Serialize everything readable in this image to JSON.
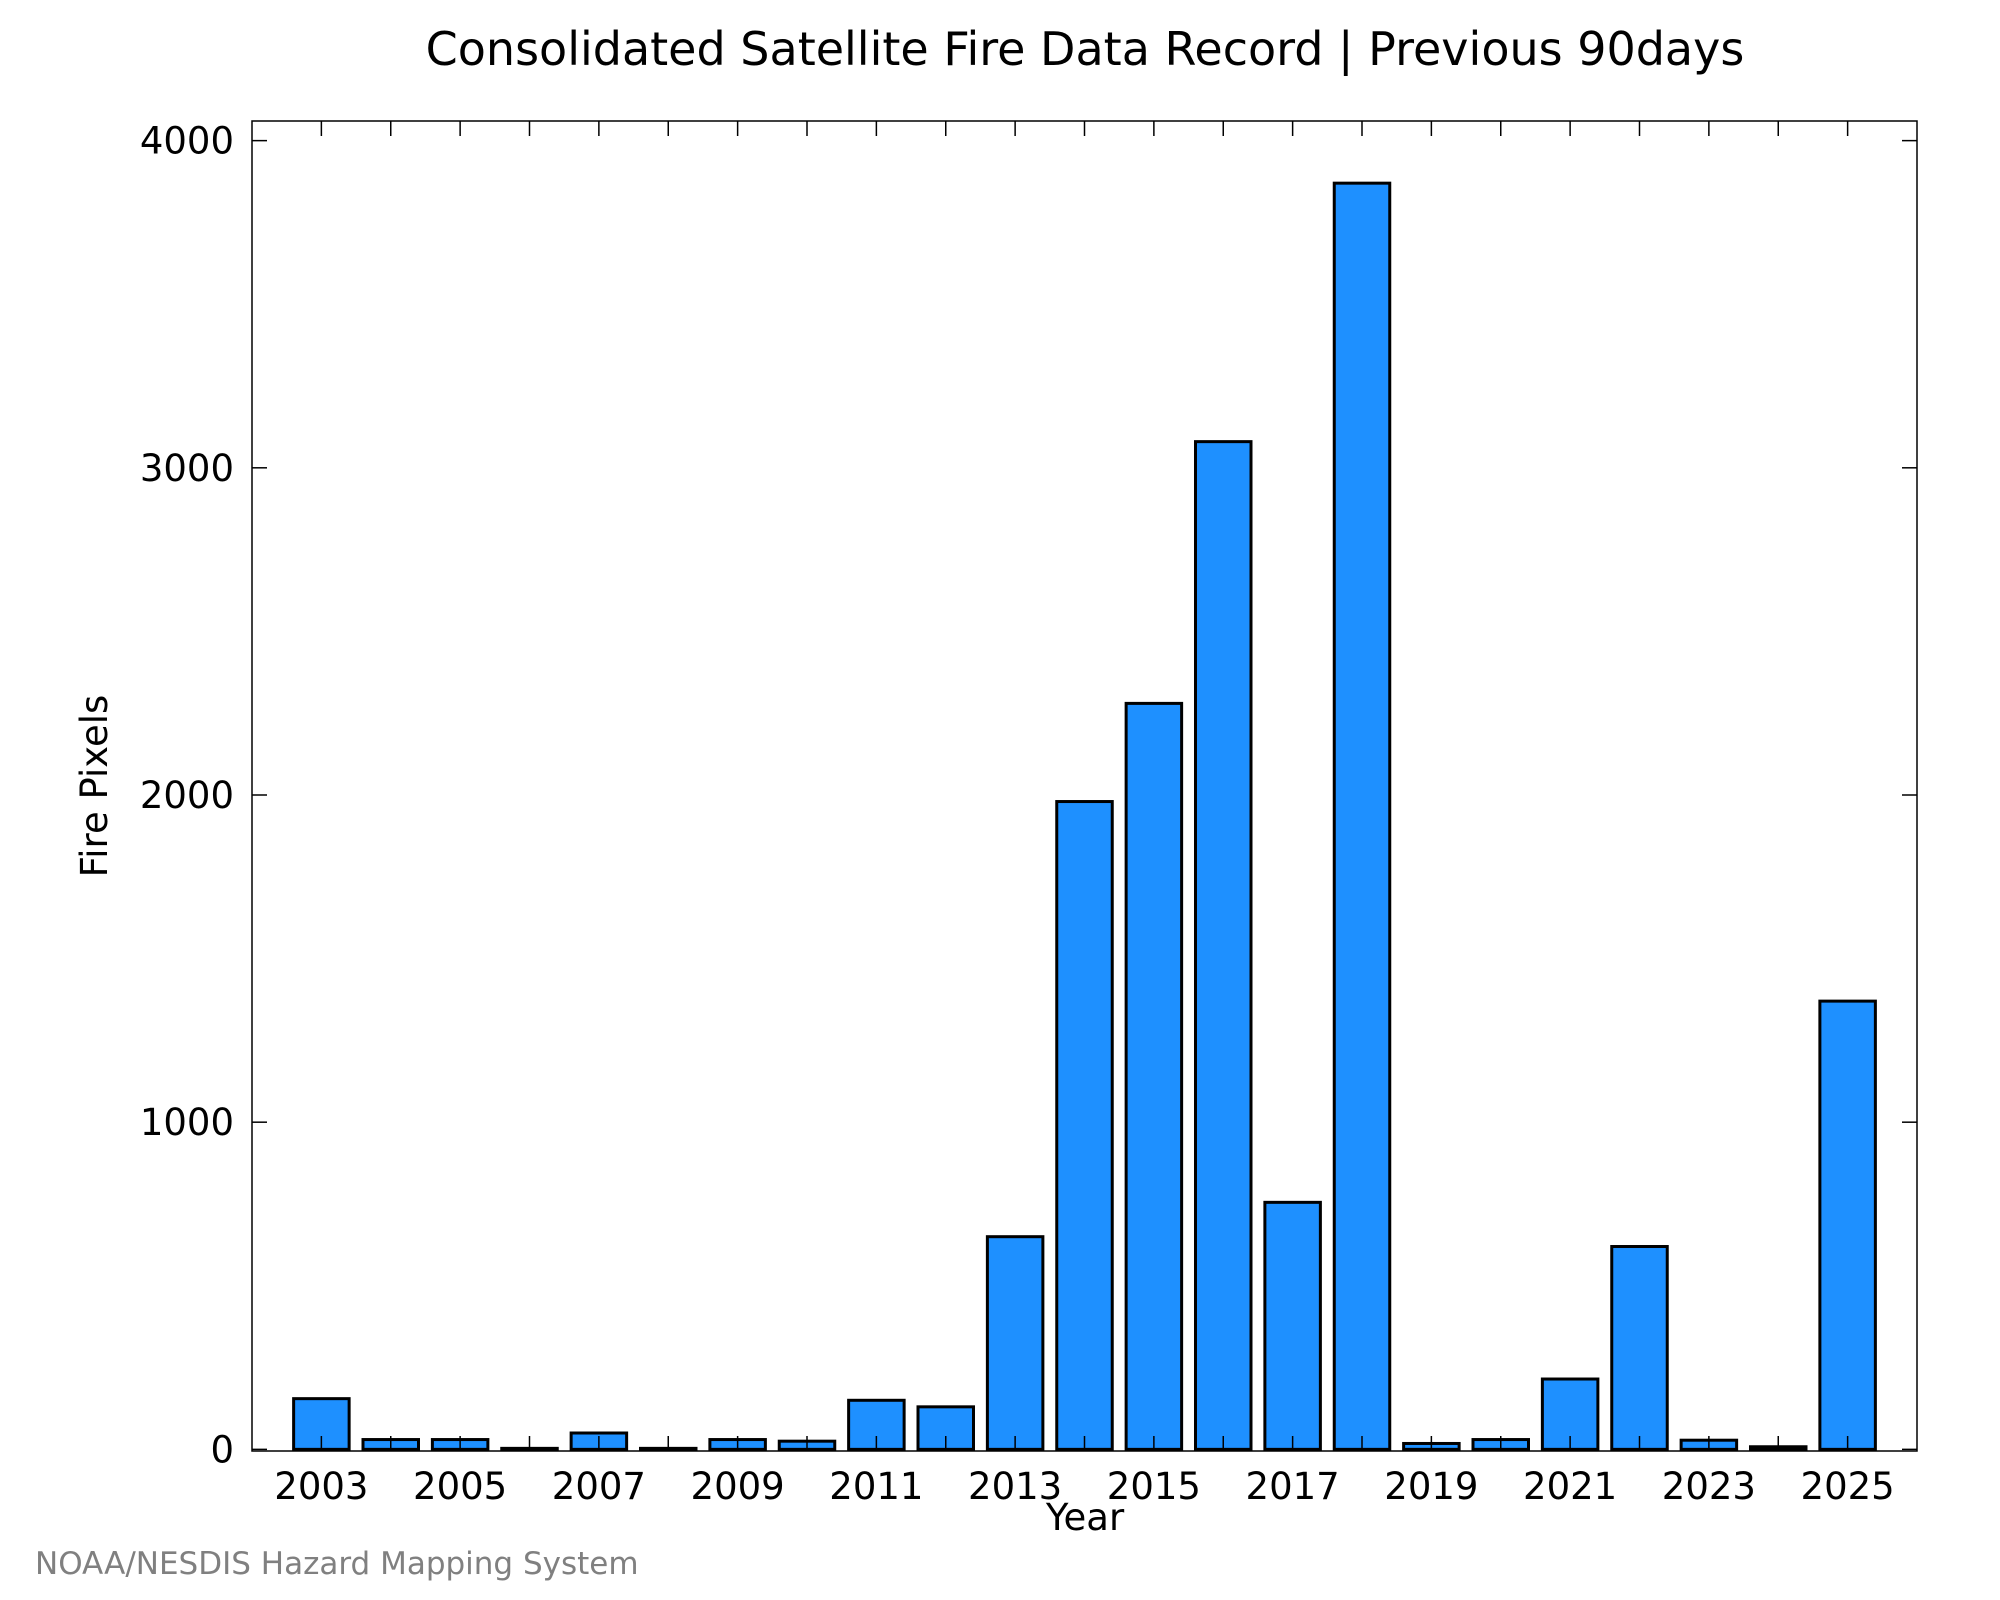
{
  "chart_data": {
    "type": "bar",
    "title": "Consolidated Satellite Fire Data Record | Previous 90days",
    "xlabel": "Year",
    "ylabel": "Fire Pixels",
    "categories": [
      "2003",
      "2004",
      "2005",
      "2006",
      "2007",
      "2008",
      "2009",
      "2010",
      "2011",
      "2012",
      "2013",
      "2014",
      "2015",
      "2016",
      "2017",
      "2018",
      "2019",
      "2020",
      "2021",
      "2022",
      "2023",
      "2024",
      "2025"
    ],
    "values": [
      155,
      30,
      30,
      1,
      50,
      1,
      30,
      25,
      150,
      130,
      650,
      1980,
      2280,
      3080,
      755,
      3870,
      18,
      30,
      215,
      620,
      28,
      8,
      1370
    ],
    "x_tick_labels": [
      "2003",
      "2005",
      "2007",
      "2009",
      "2011",
      "2013",
      "2015",
      "2017",
      "2019",
      "2021",
      "2023",
      "2025"
    ],
    "y_tick_labels": [
      "0",
      "1000",
      "2000",
      "3000",
      "4000"
    ],
    "y_ticks": [
      0,
      1000,
      2000,
      3000,
      4000
    ],
    "ylim": [
      -5,
      4060
    ],
    "xlim": [
      2002,
      2026
    ],
    "bar_color": "#1e90ff",
    "grid": false,
    "legend": "none"
  },
  "footer": {
    "credit": "NOAA/NESDIS Hazard Mapping System"
  }
}
